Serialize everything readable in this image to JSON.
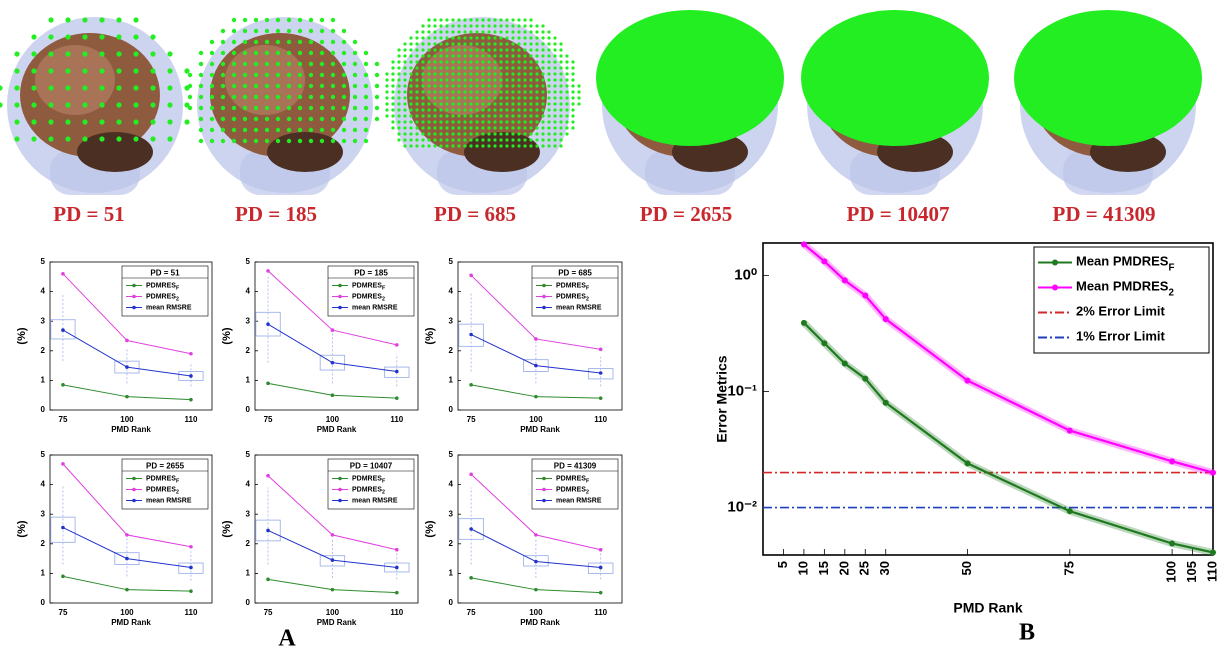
{
  "brains": {
    "labels": [
      "PD = 51",
      "PD = 185",
      "PD = 685",
      "PD = 2655",
      "PD = 10407",
      "PD = 41309"
    ]
  },
  "panel_labels": [
    "A",
    "B"
  ],
  "chart_data": [
    {
      "type": "line",
      "legend_title": "PD = 51",
      "xlabel": "PMD Rank",
      "ylabel": "(%)",
      "categories": [
        "75",
        "100",
        "110"
      ],
      "ylim": [
        0,
        5
      ],
      "yticks": [
        0,
        1,
        2,
        3,
        4,
        5
      ],
      "legend": "upper right",
      "series": [
        {
          "name": "PDMRES",
          "subscript": "F",
          "color": "#2e8b2e",
          "values": [
            0.85,
            0.45,
            0.35
          ]
        },
        {
          "name": "PDMRES",
          "subscript": "2",
          "color": "#e040e0",
          "values": [
            4.6,
            2.35,
            1.9
          ]
        },
        {
          "name": "mean RMSRE",
          "color": "#2233cc",
          "values": [
            2.7,
            1.45,
            1.15
          ]
        }
      ],
      "boxes": {
        "color": "#9fb3ea",
        "q1": [
          2.4,
          1.25,
          1.0
        ],
        "q3": [
          3.05,
          1.65,
          1.3
        ],
        "whisker_low": [
          1.65,
          0.9,
          0.8
        ],
        "whisker_high": [
          3.9,
          2.1,
          1.6
        ]
      }
    },
    {
      "type": "line",
      "legend_title": "PD = 185",
      "xlabel": "PMD Rank",
      "ylabel": "(%)",
      "categories": [
        "75",
        "100",
        "110"
      ],
      "ylim": [
        0,
        5
      ],
      "yticks": [
        0,
        1,
        2,
        3,
        4,
        5
      ],
      "legend": "upper right",
      "series": [
        {
          "name": "PDMRES",
          "subscript": "F",
          "color": "#2e8b2e",
          "values": [
            0.9,
            0.5,
            0.4
          ]
        },
        {
          "name": "PDMRES",
          "subscript": "2",
          "color": "#e040e0",
          "values": [
            4.7,
            2.7,
            2.2
          ]
        },
        {
          "name": "mean RMSRE",
          "color": "#2233cc",
          "values": [
            2.9,
            1.6,
            1.3
          ]
        }
      ],
      "boxes": {
        "color": "#9fb3ea",
        "q1": [
          2.5,
          1.35,
          1.1
        ],
        "q3": [
          3.3,
          1.85,
          1.45
        ],
        "whisker_low": [
          1.6,
          0.9,
          0.8
        ],
        "whisker_high": [
          4.5,
          2.6,
          1.9
        ]
      }
    },
    {
      "type": "line",
      "legend_title": "PD = 685",
      "xlabel": "PMD Rank",
      "ylabel": "(%)",
      "categories": [
        "75",
        "100",
        "110"
      ],
      "ylim": [
        0,
        5
      ],
      "yticks": [
        0,
        1,
        2,
        3,
        4,
        5
      ],
      "legend": "upper right",
      "series": [
        {
          "name": "PDMRES",
          "subscript": "F",
          "color": "#2e8b2e",
          "values": [
            0.85,
            0.45,
            0.4
          ]
        },
        {
          "name": "PDMRES",
          "subscript": "2",
          "color": "#e040e0",
          "values": [
            4.55,
            2.4,
            2.05
          ]
        },
        {
          "name": "mean RMSRE",
          "color": "#2233cc",
          "values": [
            2.55,
            1.5,
            1.25
          ]
        }
      ],
      "boxes": {
        "color": "#9fb3ea",
        "q1": [
          2.15,
          1.3,
          1.05
        ],
        "q3": [
          2.9,
          1.7,
          1.4
        ],
        "whisker_low": [
          1.3,
          0.9,
          0.8
        ],
        "whisker_high": [
          4.0,
          2.3,
          1.8
        ]
      }
    },
    {
      "type": "line",
      "legend_title": "PD = 2655",
      "xlabel": "PMD Rank",
      "ylabel": "(%)",
      "categories": [
        "75",
        "100",
        "110"
      ],
      "ylim": [
        0,
        5
      ],
      "yticks": [
        0,
        1,
        2,
        3,
        4,
        5
      ],
      "legend": "upper right",
      "series": [
        {
          "name": "PDMRES",
          "subscript": "F",
          "color": "#2e8b2e",
          "values": [
            0.9,
            0.45,
            0.4
          ]
        },
        {
          "name": "PDMRES",
          "subscript": "2",
          "color": "#e040e0",
          "values": [
            4.7,
            2.3,
            1.9
          ]
        },
        {
          "name": "mean RMSRE",
          "color": "#2233cc",
          "values": [
            2.55,
            1.5,
            1.2
          ]
        }
      ],
      "boxes": {
        "color": "#9fb3ea",
        "q1": [
          2.05,
          1.3,
          1.0
        ],
        "q3": [
          2.9,
          1.7,
          1.35
        ],
        "whisker_low": [
          1.3,
          0.9,
          0.75
        ],
        "whisker_high": [
          4.0,
          2.3,
          1.75
        ]
      }
    },
    {
      "type": "line",
      "legend_title": "PD = 10407",
      "xlabel": "PMD Rank",
      "ylabel": "(%)",
      "categories": [
        "75",
        "100",
        "110"
      ],
      "ylim": [
        0,
        5
      ],
      "yticks": [
        0,
        1,
        2,
        3,
        4,
        5
      ],
      "legend": "upper right",
      "series": [
        {
          "name": "PDMRES",
          "subscript": "F",
          "color": "#2e8b2e",
          "values": [
            0.8,
            0.45,
            0.35
          ]
        },
        {
          "name": "PDMRES",
          "subscript": "2",
          "color": "#e040e0",
          "values": [
            4.3,
            2.3,
            1.8
          ]
        },
        {
          "name": "mean RMSRE",
          "color": "#2233cc",
          "values": [
            2.45,
            1.45,
            1.2
          ]
        }
      ],
      "boxes": {
        "color": "#9fb3ea",
        "q1": [
          2.1,
          1.25,
          1.05
        ],
        "q3": [
          2.8,
          1.6,
          1.35
        ],
        "whisker_low": [
          1.3,
          0.85,
          0.8
        ],
        "whisker_high": [
          3.9,
          2.2,
          1.75
        ]
      }
    },
    {
      "type": "line",
      "legend_title": "PD = 41309",
      "xlabel": "PMD Rank",
      "ylabel": "(%)",
      "categories": [
        "75",
        "100",
        "110"
      ],
      "ylim": [
        0,
        5
      ],
      "yticks": [
        0,
        1,
        2,
        3,
        4,
        5
      ],
      "legend": "upper right",
      "series": [
        {
          "name": "PDMRES",
          "subscript": "F",
          "color": "#2e8b2e",
          "values": [
            0.85,
            0.45,
            0.35
          ]
        },
        {
          "name": "PDMRES",
          "subscript": "2",
          "color": "#e040e0",
          "values": [
            4.35,
            2.3,
            1.8
          ]
        },
        {
          "name": "mean RMSRE",
          "color": "#2233cc",
          "values": [
            2.5,
            1.4,
            1.2
          ]
        }
      ],
      "boxes": {
        "color": "#9fb3ea",
        "q1": [
          2.15,
          1.25,
          1.0
        ],
        "q3": [
          2.85,
          1.6,
          1.35
        ],
        "whisker_low": [
          1.3,
          0.85,
          0.8
        ],
        "whisker_high": [
          3.9,
          2.2,
          1.75
        ]
      }
    },
    {
      "type": "line",
      "xlabel": "PMD Rank",
      "ylabel": "Error Metrics",
      "log_y": true,
      "legend": "upper right",
      "xlim": [
        0,
        110
      ],
      "xticks": [
        5,
        10,
        15,
        20,
        25,
        30,
        50,
        75,
        100,
        105,
        110
      ],
      "ylim": [
        0.0039,
        1.9
      ],
      "yticks": [
        {
          "value": 1,
          "label": "10⁰"
        },
        {
          "value": 0.1,
          "label": "10⁻¹"
        },
        {
          "value": 0.01,
          "label": "10⁻²"
        }
      ],
      "x": [
        10,
        15,
        20,
        25,
        30,
        50,
        75,
        100,
        110
      ],
      "series": [
        {
          "name": "Mean PMDRES",
          "subscript": "F",
          "color": "#1f7a1f",
          "values": [
            0.39,
            0.26,
            0.174,
            0.129,
            0.08,
            0.024,
            0.0093,
            0.0049,
            0.0041
          ]
        },
        {
          "name": "Mean PMDRES",
          "subscript": "2",
          "color": "#ff00ff",
          "values": [
            1.85,
            1.32,
            0.905,
            0.67,
            0.42,
            0.124,
            0.046,
            0.025,
            0.02
          ]
        }
      ],
      "reference_lines": [
        {
          "name": "2% Error Limit",
          "value": 0.02,
          "color": "#d62728"
        },
        {
          "name": "1% Error Limit",
          "value": 0.01,
          "color": "#1f3fbf"
        }
      ]
    }
  ]
}
